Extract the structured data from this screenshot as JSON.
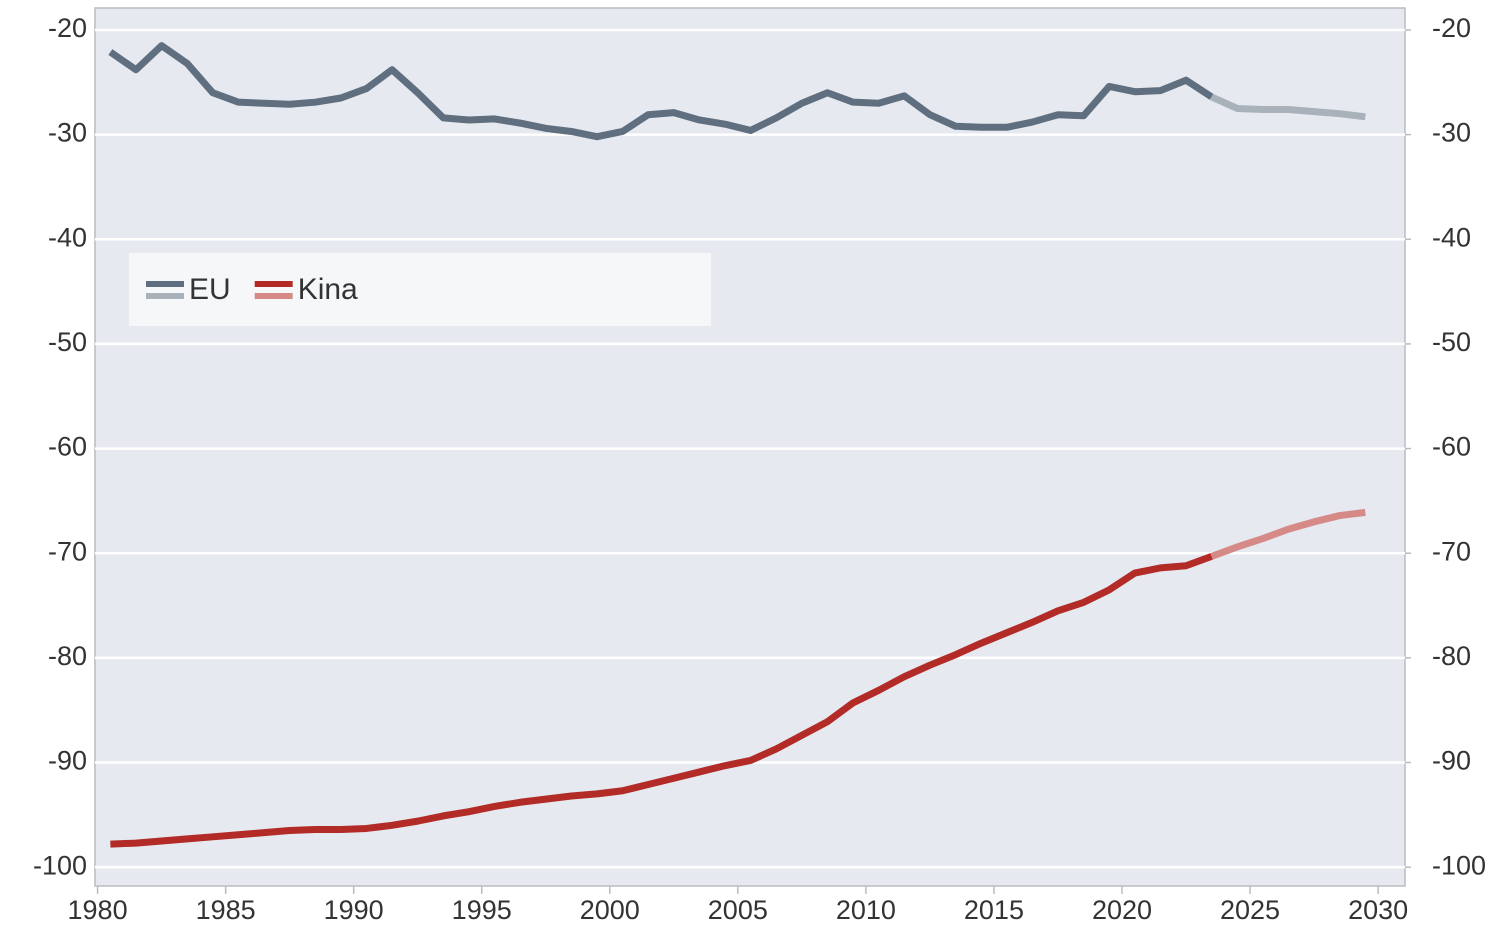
{
  "chart_data": {
    "type": "line",
    "x": [
      1980.5,
      1981.5,
      1982.5,
      1983.5,
      1984.5,
      1985.5,
      1986.5,
      1987.5,
      1988.5,
      1989.5,
      1990.5,
      1991.5,
      1992.5,
      1993.5,
      1994.5,
      1995.5,
      1996.5,
      1997.5,
      1998.5,
      1999.5,
      2000.5,
      2001.5,
      2002.5,
      2003.5,
      2004.5,
      2005.5,
      2006.5,
      2007.5,
      2008.5,
      2009.5,
      2010.5,
      2011.5,
      2012.5,
      2013.5,
      2014.5,
      2015.5,
      2016.5,
      2017.5,
      2018.5,
      2019.5,
      2020.5,
      2021.5,
      2022.5,
      2023.5,
      2024.5,
      2025.5,
      2026.5,
      2027.5,
      2028.5,
      2029.5
    ],
    "series": [
      {
        "name": "EU",
        "color": "#5f6f7f",
        "forecast_color": "#a9b2ba",
        "values": [
          -22.1,
          -23.8,
          -21.5,
          -23.2,
          -26.0,
          -26.9,
          -27.0,
          -27.1,
          -26.9,
          -26.5,
          -25.6,
          -23.8,
          -26.0,
          -28.4,
          -28.6,
          -28.5,
          -28.9,
          -29.4,
          -29.7,
          -30.2,
          -29.7,
          -28.1,
          -27.9,
          -28.6,
          -29.0,
          -29.6,
          -28.4,
          -27.0,
          -26.0,
          -26.9,
          -27.0,
          -26.3,
          -28.1,
          -29.2,
          -29.3,
          -29.3,
          -28.8,
          -28.1,
          -28.2,
          -25.4,
          -25.9,
          -25.8,
          -24.8,
          -26.4,
          null,
          null,
          null,
          null,
          null,
          null
        ],
        "forecast": [
          null,
          null,
          null,
          null,
          null,
          null,
          null,
          null,
          null,
          null,
          null,
          null,
          null,
          null,
          null,
          null,
          null,
          null,
          null,
          null,
          null,
          null,
          null,
          null,
          null,
          null,
          null,
          null,
          null,
          null,
          null,
          null,
          null,
          null,
          null,
          null,
          null,
          null,
          null,
          null,
          null,
          null,
          null,
          -26.4,
          -27.5,
          -27.6,
          -27.6,
          -27.8,
          -28.0,
          -28.3
        ]
      },
      {
        "name": "Kina",
        "color": "#b22b27",
        "forecast_color": "#d58a87",
        "values": [
          -97.8,
          -97.7,
          -97.5,
          -97.3,
          -97.1,
          -96.9,
          -96.7,
          -96.5,
          -96.4,
          -96.4,
          -96.3,
          -96.0,
          -95.6,
          -95.1,
          -94.7,
          -94.2,
          -93.8,
          -93.5,
          -93.2,
          -93.0,
          -92.7,
          -92.1,
          -91.5,
          -90.9,
          -90.3,
          -89.8,
          -88.7,
          -87.4,
          -86.1,
          -84.3,
          -83.1,
          -81.8,
          -80.7,
          -79.7,
          -78.6,
          -77.6,
          -76.6,
          -75.5,
          -74.7,
          -73.5,
          -71.9,
          -71.4,
          -71.2,
          -70.3,
          null,
          null,
          null,
          null,
          null,
          null
        ],
        "forecast": [
          null,
          null,
          null,
          null,
          null,
          null,
          null,
          null,
          null,
          null,
          null,
          null,
          null,
          null,
          null,
          null,
          null,
          null,
          null,
          null,
          null,
          null,
          null,
          null,
          null,
          null,
          null,
          null,
          null,
          null,
          null,
          null,
          null,
          null,
          null,
          null,
          null,
          null,
          null,
          null,
          null,
          null,
          null,
          -70.3,
          -69.4,
          -68.6,
          -67.7,
          -67.0,
          -66.4,
          -66.1
        ]
      }
    ],
    "xlim": [
      1979.9,
      2031.05
    ],
    "xticks": [
      1980,
      1985,
      1990,
      1995,
      2000,
      2005,
      2010,
      2015,
      2020,
      2025,
      2030
    ],
    "ylim": [
      -101.8,
      -17.9
    ],
    "yticks": [
      -20,
      -30,
      -40,
      -50,
      -60,
      -70,
      -80,
      -90,
      -100
    ],
    "y2lim": [
      -101.8,
      -17.9
    ],
    "y2ticks": [
      -20,
      -30,
      -40,
      -50,
      -60,
      -70,
      -80,
      -90,
      -100
    ],
    "grid": true,
    "legend": "upper left"
  }
}
